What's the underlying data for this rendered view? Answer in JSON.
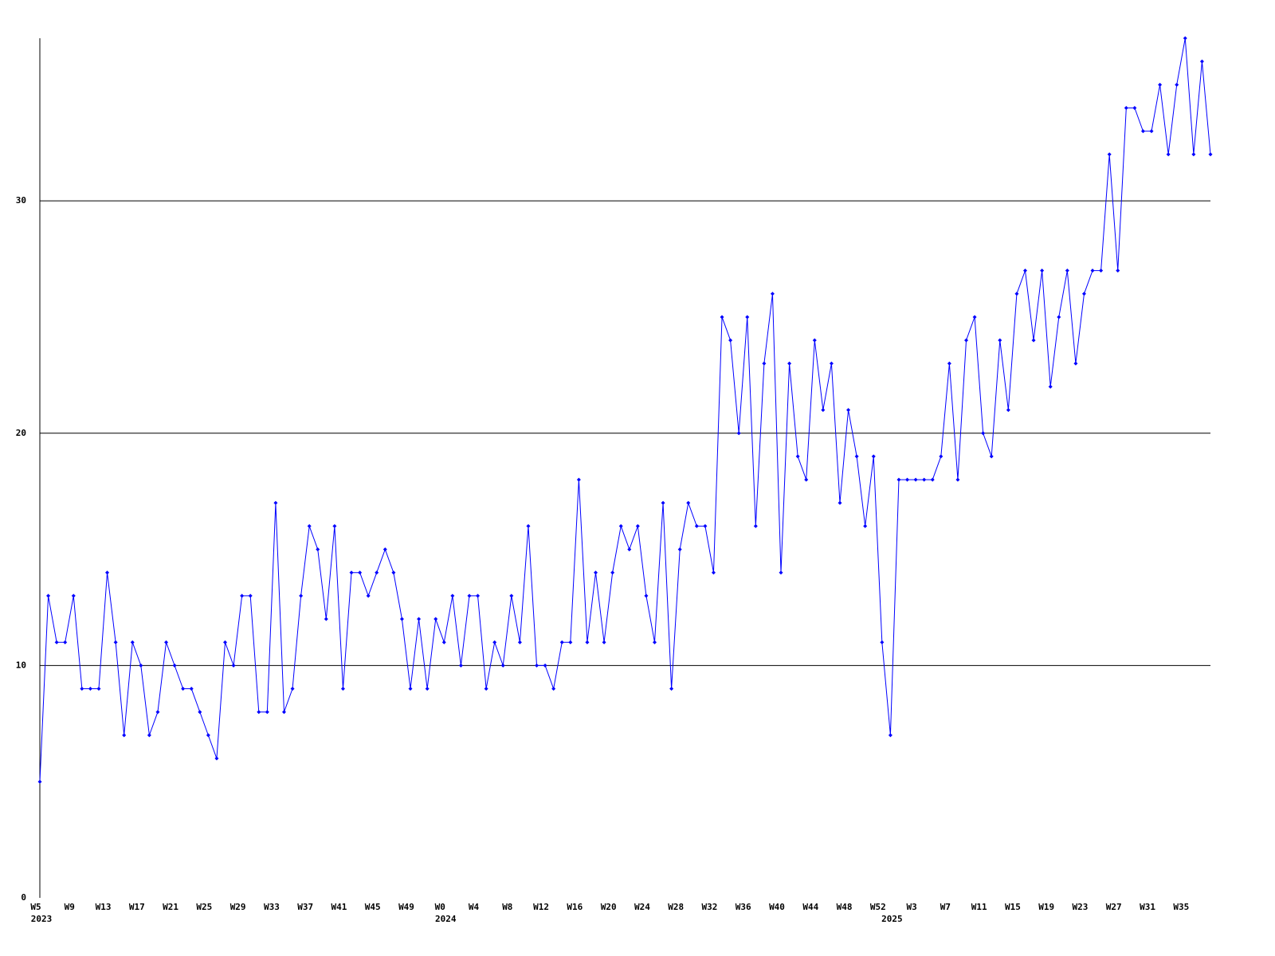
{
  "chart_data": {
    "type": "line",
    "categories": [
      "W5",
      null,
      null,
      null,
      "W9",
      null,
      null,
      null,
      "W13",
      null,
      null,
      null,
      "W17",
      null,
      null,
      null,
      "W21",
      null,
      null,
      null,
      "W25",
      null,
      null,
      null,
      "W29",
      null,
      null,
      null,
      "W33",
      null,
      null,
      null,
      "W37",
      null,
      null,
      null,
      "W41",
      null,
      null,
      null,
      "W45",
      null,
      null,
      null,
      "W49",
      null,
      null,
      null,
      "W0",
      null,
      null,
      null,
      "W4",
      null,
      null,
      null,
      "W8",
      null,
      null,
      null,
      "W12",
      null,
      null,
      null,
      "W16",
      null,
      null,
      null,
      "W20",
      null,
      null,
      null,
      "W24",
      null,
      null,
      null,
      "W28",
      null,
      null,
      null,
      "W32",
      null,
      null,
      null,
      "W36",
      null,
      null,
      null,
      "W40",
      null,
      null,
      null,
      "W44",
      null,
      null,
      null,
      "W48",
      null,
      null,
      null,
      "W52",
      null,
      null,
      null,
      "W3",
      null,
      null,
      null,
      "W7",
      null,
      null,
      null,
      "W11",
      null,
      null,
      null,
      "W15",
      null,
      null,
      null,
      "W19",
      null,
      null,
      null,
      "W23",
      null,
      null,
      null,
      "W27",
      null,
      null,
      null,
      "W31",
      null,
      null,
      null,
      "W35",
      null,
      null,
      null
    ],
    "x_groups": [
      {
        "label": "2023",
        "start": 0
      },
      {
        "label": "2024",
        "start": 48
      },
      {
        "label": "2025",
        "start": 101
      }
    ],
    "series": [
      {
        "color": "#0000ff",
        "values": [
          5,
          13,
          11,
          11,
          13,
          9,
          9,
          9,
          14,
          11,
          7,
          11,
          10,
          7,
          8,
          11,
          10,
          9,
          9,
          8,
          7,
          6,
          11,
          10,
          13,
          13,
          8,
          8,
          17,
          8,
          9,
          13,
          16,
          15,
          12,
          16,
          9,
          14,
          14,
          13,
          14,
          15,
          14,
          12,
          9,
          12,
          9,
          12,
          11,
          13,
          10,
          13,
          13,
          9,
          11,
          10,
          13,
          11,
          16,
          10,
          10,
          9,
          11,
          11,
          18,
          11,
          14,
          11,
          14,
          16,
          15,
          16,
          13,
          11,
          17,
          9,
          15,
          17,
          16,
          16,
          14,
          25,
          24,
          20,
          25,
          16,
          23,
          26,
          14,
          23,
          19,
          18,
          24,
          21,
          23,
          17,
          21,
          19,
          16,
          19,
          11,
          7,
          18,
          18,
          18,
          18,
          18,
          19,
          23,
          18,
          24,
          25,
          20,
          19,
          24,
          21,
          26,
          27,
          24,
          27,
          22,
          25,
          27,
          23,
          26,
          27,
          27,
          32,
          27,
          34,
          34,
          33,
          33,
          35,
          32,
          35,
          37,
          32,
          36,
          32
        ]
      }
    ],
    "ylim": [
      0,
      37
    ],
    "yticks": [
      0,
      10,
      20,
      30
    ],
    "grid": true
  }
}
